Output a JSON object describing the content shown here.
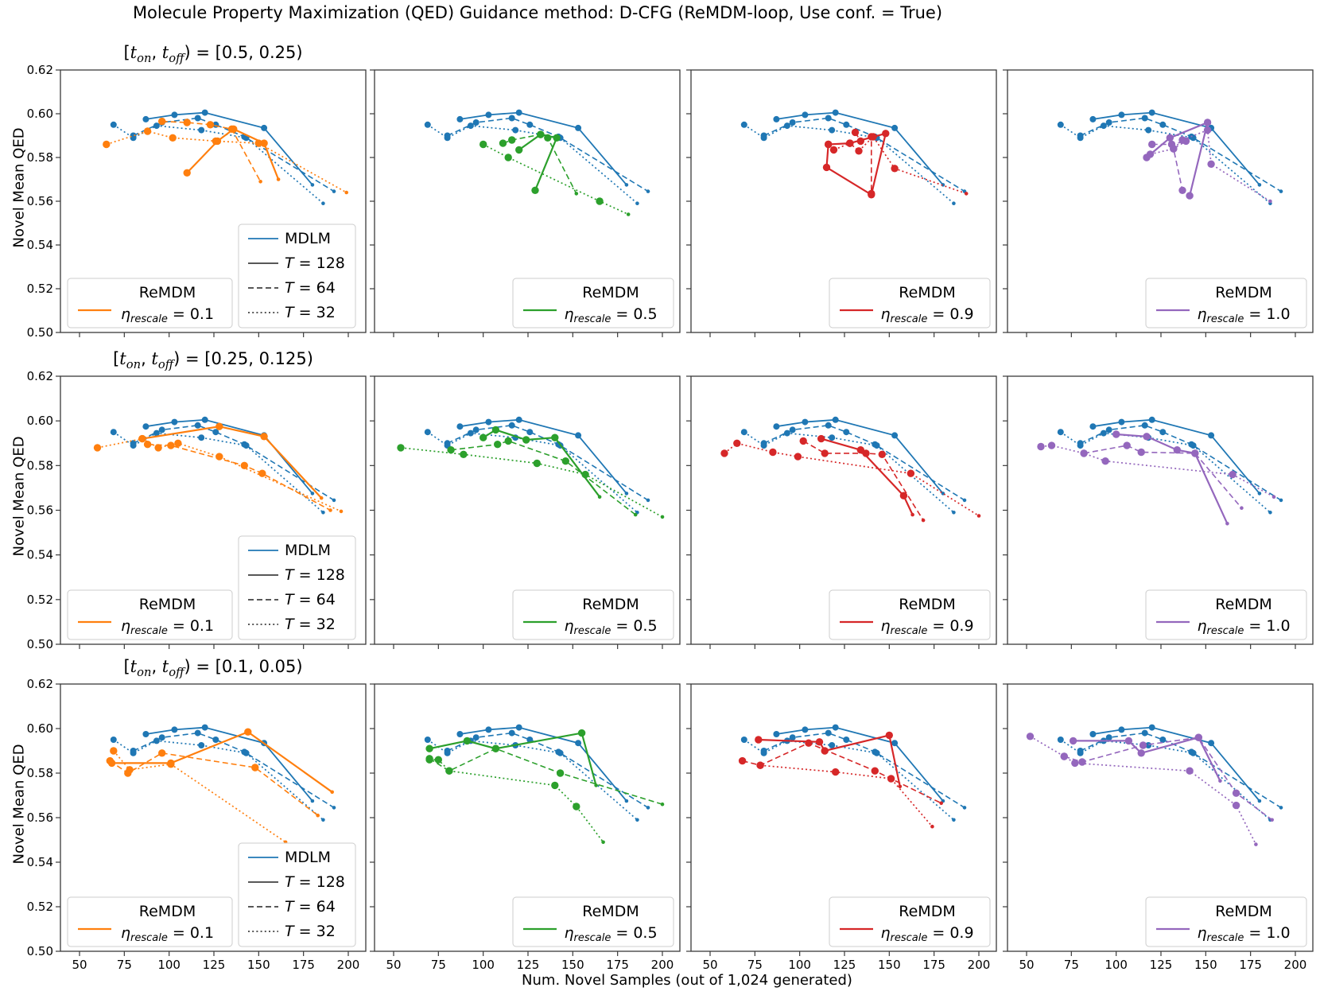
{
  "chart_data": {
    "type": "line",
    "suptitle": "Molecule Property Maximization (QED) Guidance method: D-CFG (ReMDM-loop, Use conf. = True)",
    "xlabel": "Num. Novel Samples (out of 1,024 generated)",
    "ylabel": "Novel Mean QED",
    "xlim": [
      39,
      210
    ],
    "ylim": [
      0.5,
      0.62
    ],
    "xticks": [
      50,
      75,
      100,
      125,
      150,
      175,
      200
    ],
    "yticks": [
      "0.50",
      "0.52",
      "0.54",
      "0.56",
      "0.58",
      "0.60",
      "0.62"
    ],
    "grid": false,
    "legend_position": "lower left / lower center",
    "row_title_parts": [
      "[t",
      "on",
      ", t",
      "off",
      ") = "
    ],
    "remdm_label": "ReMDM",
    "eta_symbol": "η",
    "eta_sub": "rescale",
    "t_legend": [
      {
        "style": "solid",
        "label_t": "T",
        "label_rest": " = 128"
      },
      {
        "style": "dashed",
        "label_t": "T",
        "label_rest": " = 64"
      },
      {
        "style": "dotted",
        "label_t": "T",
        "label_rest": " = 32"
      }
    ],
    "t_legend_color": "#404040",
    "mdlm": {
      "label": "MDLM",
      "color": "#1f77b4",
      "T128": [
        [
          87,
          0.5975
        ],
        [
          103,
          0.5995
        ],
        [
          120,
          0.6005
        ],
        [
          153,
          0.5935
        ],
        [
          180,
          0.5675
        ]
      ],
      "T64": [
        [
          80,
          0.59
        ],
        [
          96,
          0.596
        ],
        [
          116,
          0.598
        ],
        [
          126,
          0.595
        ],
        [
          142,
          0.5895
        ],
        [
          192,
          0.5645
        ]
      ],
      "T32": [
        [
          69,
          0.595
        ],
        [
          80,
          0.589
        ],
        [
          93,
          0.5945
        ],
        [
          118,
          0.5925
        ],
        [
          143,
          0.589
        ],
        [
          186,
          0.559
        ]
      ]
    },
    "rows": [
      {
        "title_value": "[0.5, 0.25)",
        "panels": [
          {
            "eta": "0.1",
            "color": "#ff7f0e",
            "T128": [
              [
                110,
                0.573
              ],
              [
                127,
                0.5875
              ],
              [
                136,
                0.593
              ],
              [
                153,
                0.5865
              ],
              [
                161,
                0.57
              ]
            ],
            "T64": [
              [
                96,
                0.5965
              ],
              [
                110,
                0.596
              ],
              [
                123,
                0.595
              ],
              [
                135,
                0.593
              ],
              [
                151,
                0.569
              ]
            ],
            "T32": [
              [
                65,
                0.586
              ],
              [
                88,
                0.592
              ],
              [
                102,
                0.589
              ],
              [
                126,
                0.5875
              ],
              [
                150,
                0.5865
              ],
              [
                199,
                0.564
              ]
            ]
          },
          {
            "eta": "0.5",
            "color": "#2ca02c",
            "T128": [
              [
                120,
                0.5835
              ],
              [
                132,
                0.5905
              ],
              [
                141,
                0.589
              ],
              [
                129,
                0.565
              ]
            ],
            "T64": [
              [
                111,
                0.5865
              ],
              [
                116,
                0.588
              ],
              [
                132,
                0.5905
              ],
              [
                136,
                0.589
              ],
              [
                152,
                0.5635
              ]
            ],
            "T32": [
              [
                100,
                0.586
              ],
              [
                114,
                0.58
              ],
              [
                165,
                0.56
              ],
              [
                181,
                0.554
              ]
            ]
          },
          {
            "eta": "0.9",
            "color": "#d62728",
            "T128": [
              [
                128,
                0.5865
              ],
              [
                116,
                0.586
              ],
              [
                115,
                0.5755
              ],
              [
                140,
                0.563
              ],
              [
                148,
                0.591
              ],
              [
                128,
                0.5865
              ]
            ],
            "T64": [
              [
                131,
                0.5915
              ],
              [
                134,
                0.5875
              ],
              [
                140,
                0.5895
              ],
              [
                140,
                0.5635
              ]
            ],
            "T32": [
              [
                116,
                0.586
              ],
              [
                119,
                0.5835
              ],
              [
                128,
                0.5865
              ],
              [
                133,
                0.583
              ],
              [
                141,
                0.5895
              ],
              [
                153,
                0.575
              ],
              [
                193,
                0.5635
              ]
            ]
          },
          {
            "eta": "1.0",
            "color": "#9467bd",
            "T128": [
              [
                117,
                0.58
              ],
              [
                130,
                0.589
              ],
              [
                151,
                0.596
              ],
              [
                141,
                0.5625
              ]
            ],
            "T64": [
              [
                120,
                0.586
              ],
              [
                131,
                0.586
              ],
              [
                139,
                0.5875
              ],
              [
                132,
                0.584
              ],
              [
                137,
                0.565
              ]
            ],
            "T32": [
              [
                119,
                0.5815
              ],
              [
                132,
                0.584
              ],
              [
                137,
                0.588
              ],
              [
                151,
                0.5925
              ],
              [
                153,
                0.577
              ],
              [
                186,
                0.56
              ]
            ]
          }
        ]
      },
      {
        "title_value": "[0.25, 0.125)",
        "panels": [
          {
            "eta": "0.1",
            "color": "#ff7f0e",
            "T128": [
              [
                85,
                0.592
              ],
              [
                128,
                0.5975
              ],
              [
                153,
                0.593
              ],
              [
                185,
                0.5655
              ]
            ],
            "T64": [
              [
                88,
                0.5895
              ],
              [
                101,
                0.589
              ],
              [
                142,
                0.58
              ],
              [
                152,
                0.5765
              ],
              [
                190,
                0.56
              ]
            ],
            "T32": [
              [
                60,
                0.588
              ],
              [
                85,
                0.592
              ],
              [
                94,
                0.588
              ],
              [
                105,
                0.59
              ],
              [
                128,
                0.584
              ],
              [
                196,
                0.5595
              ]
            ]
          },
          {
            "eta": "0.5",
            "color": "#2ca02c",
            "T128": [
              [
                100,
                0.5925
              ],
              [
                107,
                0.596
              ],
              [
                124,
                0.5915
              ],
              [
                140,
                0.5925
              ],
              [
                165,
                0.566
              ]
            ],
            "T64": [
              [
                82,
                0.587
              ],
              [
                108,
                0.5895
              ],
              [
                114,
                0.591
              ],
              [
                146,
                0.582
              ],
              [
                185,
                0.558
              ]
            ],
            "T32": [
              [
                54,
                0.588
              ],
              [
                89,
                0.585
              ],
              [
                130,
                0.581
              ],
              [
                157,
                0.576
              ],
              [
                200,
                0.557
              ]
            ]
          },
          {
            "eta": "0.9",
            "color": "#d62728",
            "T128": [
              [
                112,
                0.592
              ],
              [
                134,
                0.587
              ],
              [
                158,
                0.5665
              ],
              [
                163,
                0.558
              ]
            ],
            "T64": [
              [
                102,
                0.591
              ],
              [
                114,
                0.5855
              ],
              [
                137,
                0.5855
              ],
              [
                146,
                0.585
              ],
              [
                169,
                0.5555
              ]
            ],
            "T32": [
              [
                58,
                0.5855
              ],
              [
                65,
                0.59
              ],
              [
                85,
                0.586
              ],
              [
                99,
                0.584
              ],
              [
                162,
                0.5765
              ],
              [
                200,
                0.5575
              ]
            ]
          },
          {
            "eta": "1.0",
            "color": "#9467bd",
            "T128": [
              [
                100,
                0.594
              ],
              [
                117,
                0.593
              ],
              [
                134,
                0.587
              ],
              [
                144,
                0.5855
              ],
              [
                162,
                0.554
              ]
            ],
            "T64": [
              [
                82,
                0.5855
              ],
              [
                106,
                0.589
              ],
              [
                114,
                0.586
              ],
              [
                144,
                0.5855
              ],
              [
                170,
                0.561
              ]
            ],
            "T32": [
              [
                58,
                0.5885
              ],
              [
                64,
                0.589
              ],
              [
                82,
                0.5855
              ],
              [
                94,
                0.582
              ],
              [
                165,
                0.576
              ],
              [
                188,
                0.566
              ]
            ]
          }
        ]
      },
      {
        "title_value": "[0.1, 0.05)",
        "panels": [
          {
            "eta": "0.1",
            "color": "#ff7f0e",
            "T128": [
              [
                68,
                0.5845
              ],
              [
                101,
                0.5845
              ],
              [
                144,
                0.5985
              ],
              [
                191,
                0.5715
              ]
            ],
            "T64": [
              [
                67,
                0.5855
              ],
              [
                77,
                0.58
              ],
              [
                96,
                0.589
              ],
              [
                148,
                0.5825
              ],
              [
                183,
                0.561
              ]
            ],
            "T32": [
              [
                69,
                0.59
              ],
              [
                78,
                0.5815
              ],
              [
                101,
                0.584
              ],
              [
                165,
                0.549
              ]
            ]
          },
          {
            "eta": "0.5",
            "color": "#2ca02c",
            "T128": [
              [
                70,
                0.591
              ],
              [
                91,
                0.5945
              ],
              [
                107,
                0.591
              ],
              [
                155,
                0.598
              ],
              [
                163,
                0.5745
              ]
            ],
            "T64": [
              [
                70,
                0.5865
              ],
              [
                81,
                0.581
              ],
              [
                107,
                0.591
              ],
              [
                143,
                0.58
              ],
              [
                200,
                0.566
              ]
            ],
            "T32": [
              [
                70,
                0.586
              ],
              [
                75,
                0.586
              ],
              [
                81,
                0.581
              ],
              [
                140,
                0.5745
              ],
              [
                152,
                0.565
              ],
              [
                167,
                0.549
              ]
            ]
          },
          {
            "eta": "0.9",
            "color": "#d62728",
            "T128": [
              [
                77,
                0.595
              ],
              [
                111,
                0.594
              ],
              [
                114,
                0.59
              ],
              [
                150,
                0.597
              ],
              [
                156,
                0.574
              ]
            ],
            "T64": [
              [
                68,
                0.5855
              ],
              [
                78,
                0.5835
              ],
              [
                105,
                0.5935
              ],
              [
                142,
                0.581
              ],
              [
                179,
                0.5665
              ]
            ],
            "T32": [
              [
                78,
                0.5835
              ],
              [
                120,
                0.5805
              ],
              [
                151,
                0.5775
              ],
              [
                174,
                0.556
              ]
            ]
          },
          {
            "eta": "1.0",
            "color": "#9467bd",
            "T128": [
              [
                76,
                0.5945
              ],
              [
                107,
                0.5945
              ],
              [
                114,
                0.589
              ],
              [
                146,
                0.596
              ],
              [
                158,
                0.5765
              ]
            ],
            "T64": [
              [
                71,
                0.5875
              ],
              [
                81,
                0.585
              ],
              [
                115,
                0.5925
              ],
              [
                146,
                0.596
              ],
              [
                167,
                0.571
              ],
              [
                187,
                0.559
              ]
            ],
            "T32": [
              [
                52,
                0.5965
              ],
              [
                71,
                0.5875
              ],
              [
                77,
                0.5845
              ],
              [
                141,
                0.581
              ],
              [
                167,
                0.5655
              ],
              [
                178,
                0.548
              ]
            ]
          }
        ]
      }
    ]
  }
}
